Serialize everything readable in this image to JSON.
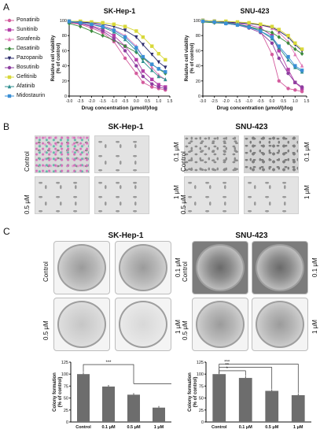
{
  "panels": {
    "A": "A",
    "B": "B",
    "C": "C"
  },
  "panelA": {
    "legend": [
      {
        "name": "Ponatinib",
        "color": "#d45c9e",
        "marker": "circle"
      },
      {
        "name": "Sunitinib",
        "color": "#b43fa8",
        "marker": "square"
      },
      {
        "name": "Sorafenib",
        "color": "#e07ab8",
        "marker": "triangle"
      },
      {
        "name": "Dasatinib",
        "color": "#3a8a3a",
        "marker": "diamond"
      },
      {
        "name": "Pazopanib",
        "color": "#2b2b6b",
        "marker": "triangle-down"
      },
      {
        "name": "Bosutinib",
        "color": "#8e3fa0",
        "marker": "circle"
      },
      {
        "name": "Gefitinib",
        "color": "#d8d83a",
        "marker": "square"
      },
      {
        "name": "Afatinib",
        "color": "#2f8f8f",
        "marker": "triangle"
      },
      {
        "name": "Midostaurin",
        "color": "#3a8fd6",
        "marker": "square"
      }
    ]
  },
  "chart_data": [
    {
      "type": "line",
      "title": "SK-Hep-1",
      "xlabel": "Drug concentration (μmol/l)/log",
      "ylabel": "Relative cell viability\n(% of control)",
      "xlim": [
        -3.0,
        1.5
      ],
      "ylim": [
        0,
        100
      ],
      "xticks": [
        "-3.0",
        "-2.5",
        "-2.0",
        "-1.5",
        "-1.0",
        "-0.5",
        "0.0",
        "0.5",
        "1.0",
        "1.5"
      ],
      "yticks": [
        "0",
        "20",
        "40",
        "60",
        "80",
        "100"
      ],
      "x": [
        -3.0,
        -2.5,
        -2.0,
        -1.5,
        -1.0,
        -0.5,
        0.0,
        0.3,
        0.7,
        1.0,
        1.3
      ],
      "series": [
        {
          "name": "Ponatinib",
          "values": [
            97,
            95,
            90,
            84,
            72,
            50,
            30,
            18,
            12,
            10,
            8
          ]
        },
        {
          "name": "Sunitinib",
          "values": [
            98,
            96,
            93,
            88,
            80,
            66,
            48,
            33,
            22,
            15,
            12
          ]
        },
        {
          "name": "Sorafenib",
          "values": [
            99,
            98,
            96,
            93,
            88,
            80,
            66,
            52,
            38,
            28,
            22
          ]
        },
        {
          "name": "Dasatinib",
          "values": [
            96,
            92,
            86,
            80,
            74,
            66,
            58,
            50,
            42,
            36,
            30
          ]
        },
        {
          "name": "Pazopanib",
          "values": [
            99,
            98,
            97,
            95,
            92,
            87,
            78,
            68,
            55,
            45,
            38
          ]
        },
        {
          "name": "Bosutinib",
          "values": [
            98,
            96,
            92,
            86,
            76,
            60,
            40,
            26,
            16,
            12,
            10
          ]
        },
        {
          "name": "Gefitinib",
          "values": [
            99,
            99,
            98,
            97,
            95,
            92,
            86,
            78,
            66,
            56,
            48
          ]
        },
        {
          "name": "Afatinib",
          "values": [
            98,
            97,
            95,
            91,
            85,
            75,
            60,
            46,
            34,
            26,
            22
          ]
        },
        {
          "name": "Midostaurin",
          "values": [
            99,
            97,
            95,
            92,
            87,
            78,
            64,
            52,
            42,
            36,
            32
          ]
        }
      ]
    },
    {
      "type": "line",
      "title": "SNU-423",
      "xlabel": "Drug concentration (μmol/l)/log",
      "ylabel": "Relative cell viability\n(% of control)",
      "xlim": [
        -3.0,
        1.5
      ],
      "ylim": [
        0,
        100
      ],
      "xticks": [
        "-3.0",
        "-2.5",
        "-2.0",
        "-1.5",
        "-1.0",
        "-0.5",
        "0.0",
        "0.5",
        "1.0",
        "1.5"
      ],
      "yticks": [
        "0",
        "20",
        "40",
        "60",
        "80",
        "100"
      ],
      "x": [
        -3.0,
        -2.5,
        -2.0,
        -1.5,
        -1.0,
        -0.5,
        0.0,
        0.3,
        0.7,
        1.0,
        1.3
      ],
      "series": [
        {
          "name": "Ponatinib",
          "values": [
            99,
            98,
            97,
            95,
            92,
            86,
            55,
            20,
            10,
            8,
            6
          ]
        },
        {
          "name": "Sunitinib",
          "values": [
            99,
            98,
            97,
            96,
            94,
            90,
            80,
            60,
            35,
            18,
            10
          ]
        },
        {
          "name": "Sorafenib",
          "values": [
            100,
            99,
            98,
            97,
            96,
            94,
            90,
            84,
            72,
            55,
            40
          ]
        },
        {
          "name": "Dasatinib",
          "values": [
            98,
            97,
            96,
            94,
            92,
            88,
            84,
            78,
            70,
            62,
            56
          ]
        },
        {
          "name": "Pazopanib",
          "values": [
            100,
            99,
            98,
            97,
            96,
            94,
            91,
            86,
            78,
            68,
            60
          ]
        },
        {
          "name": "Bosutinib",
          "values": [
            99,
            98,
            96,
            94,
            90,
            84,
            70,
            50,
            30,
            18,
            12
          ]
        },
        {
          "name": "Gefitinib",
          "values": [
            100,
            99,
            99,
            98,
            97,
            95,
            92,
            88,
            80,
            70,
            62
          ]
        },
        {
          "name": "Afatinib",
          "values": [
            99,
            98,
            97,
            95,
            92,
            86,
            76,
            64,
            48,
            38,
            32
          ]
        },
        {
          "name": "Midostaurin",
          "values": [
            99,
            98,
            96,
            94,
            91,
            86,
            78,
            66,
            52,
            40,
            34
          ]
        }
      ]
    },
    {
      "type": "bar",
      "title": "",
      "categories": [
        "Control",
        "0.1 μM",
        "0.5 μM",
        "1 μM"
      ],
      "values": [
        100,
        74,
        57,
        30
      ],
      "ylabel": "Colony formation\n(% of control)",
      "ylim": [
        0,
        125
      ],
      "yticks": [
        "0",
        "25",
        "50",
        "75",
        "100",
        "125"
      ],
      "significance": "***"
    },
    {
      "type": "bar",
      "title": "",
      "categories": [
        "Control",
        "0.1 μM",
        "0.5 μM",
        "1 μM"
      ],
      "values": [
        100,
        92,
        65,
        56
      ],
      "ylabel": "Colony formation\n(% of control)",
      "ylim": [
        0,
        125
      ],
      "yticks": [
        "0",
        "25",
        "50",
        "75",
        "100",
        "125"
      ],
      "significance": [
        "*",
        "**",
        "***"
      ]
    }
  ],
  "panelB": {
    "left_title": "SK-Hep-1",
    "right_title": "SNU-423",
    "row_labels_left": [
      "Control",
      "0.5 μM"
    ],
    "row_labels_mid": [
      "0.1 μM",
      "1 μM"
    ],
    "row_labels_mid2": [
      "Control",
      "0.5 μM"
    ],
    "row_labels_right": [
      "0.1 μM",
      "1 μM"
    ]
  },
  "panelC": {
    "left_title": "SK-Hep-1",
    "right_title": "SNU-423",
    "row_labels_left": [
      "Control",
      "0.5 μM"
    ],
    "row_labels_mid": [
      "0.1 μM",
      "1 μM"
    ],
    "row_labels_mid2": [
      "Control",
      "0.5 μM"
    ],
    "row_labels_right": [
      "0.1 μM",
      "1 μM"
    ]
  }
}
